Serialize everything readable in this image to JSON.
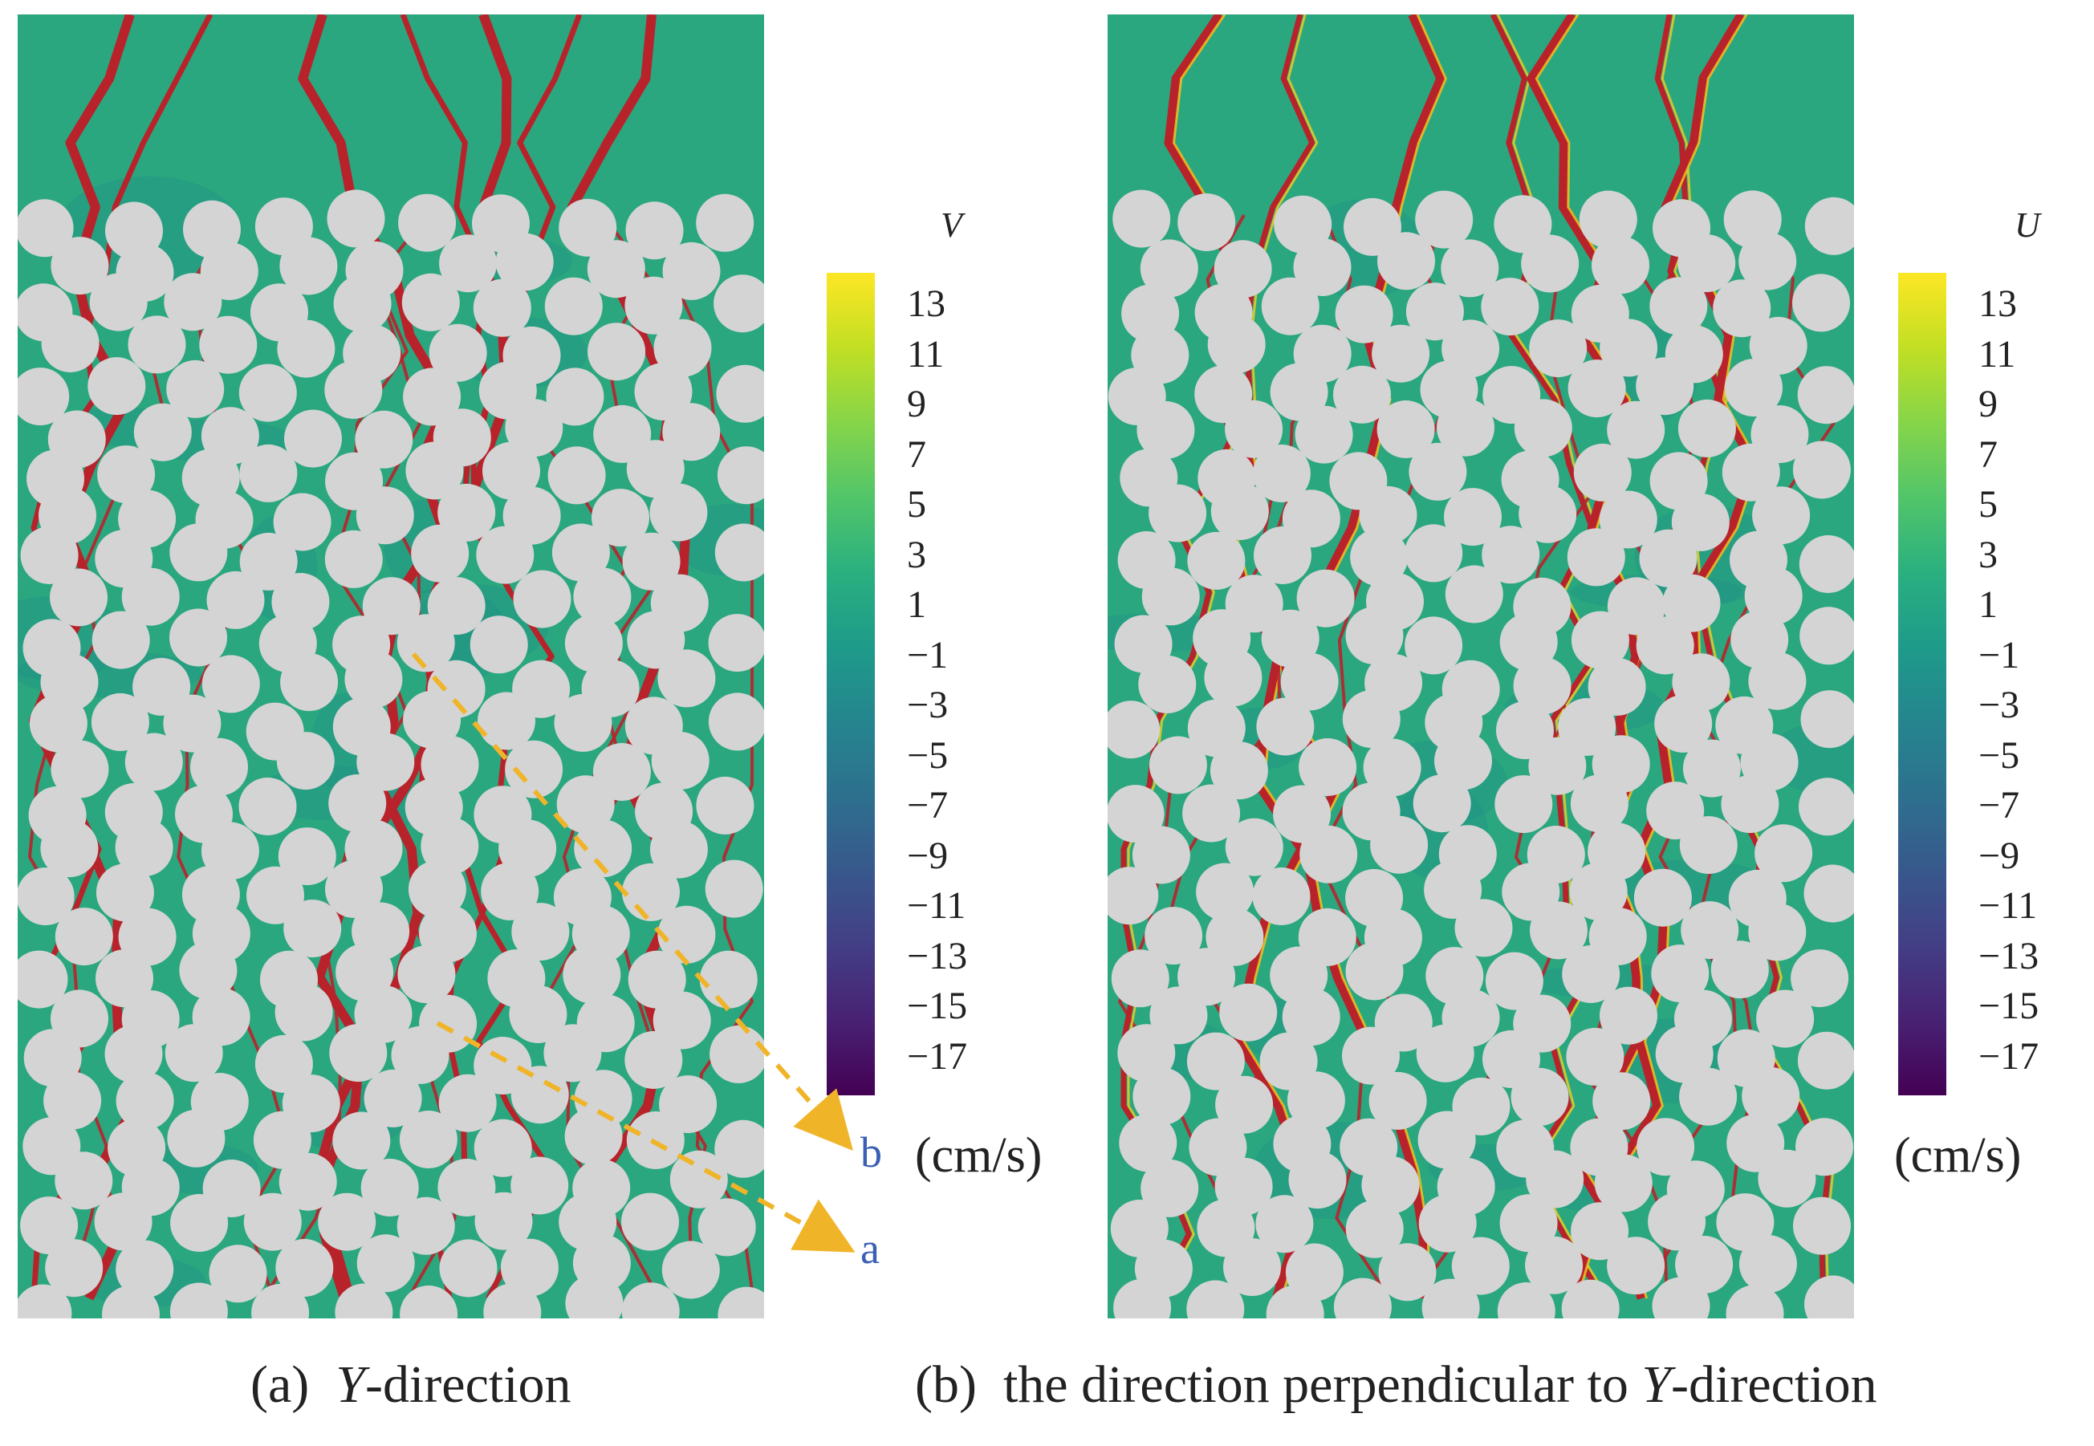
{
  "figure": {
    "panel_a": {
      "colorbar_var": "V",
      "unit": "(cm/s)",
      "caption_prefix": "(a)",
      "caption_italic": "Y",
      "caption_rest": "-direction",
      "marker_a": "a",
      "marker_b": "b"
    },
    "panel_b": {
      "colorbar_var": "U",
      "unit": "(cm/s)",
      "caption_prefix": "(b)",
      "caption_text": "the direction perpendicular to",
      "caption_italic": "Y",
      "caption_rest": "-direction"
    },
    "colorbar_ticks": [
      "13",
      "11",
      "9",
      "7",
      "5",
      "3",
      "1",
      "−1",
      "−3",
      "−5",
      "−7",
      "−9",
      "−11",
      "−13",
      "−15",
      "−17"
    ],
    "colors": {
      "field": "#2aa77f",
      "particle": "#d4d4d4",
      "streamline": "#b8232b",
      "highlight": "#f4d021",
      "arrow": "#f0b429",
      "marker": "#3a5fb3"
    }
  }
}
